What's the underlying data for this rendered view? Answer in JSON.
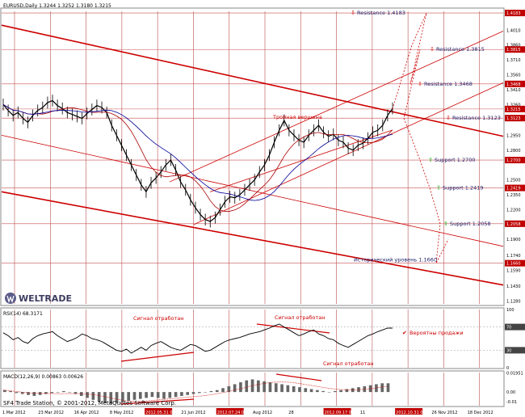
{
  "header": {
    "symbol_info": "EURUSD,Daily  1.3244 1.3252 1.3180 1.3215"
  },
  "footer": {
    "copyright": "SF4 Trade Station, © 2001-2012, MetaQuotes Software Corp."
  },
  "logo": {
    "text": "WELTRADE"
  },
  "chart_data": [
    {
      "type": "line",
      "panel": "price",
      "title": "EURUSD,Daily  1.3244 1.3252 1.3180 1.3215",
      "x_tick_labels": [
        "1 Mar 2012",
        "23 Mar 2012",
        "16 Apr 2012",
        "8 May 2012",
        "2012.05.31 00:00",
        "21 Jun 2012",
        "2012.07.24 00:00",
        "Aug 2012",
        "28",
        "2012.09.17 00:00",
        "11",
        "2012.10.31 00:00",
        "26 Nov 2012",
        "18 Dec 2012"
      ],
      "y_tick_labels": [
        "1.4183",
        "1.4010",
        "1.3860",
        "1.3815",
        "1.3710",
        "1.3560",
        "1.3468",
        "1.3410",
        "1.3260",
        "1.3215",
        "1.3123",
        "1.2950",
        "1.2800",
        "1.2700",
        "1.2500",
        "1.2419",
        "1.2350",
        "1.2200",
        "1.2058",
        "1.1900",
        "1.1740",
        "1.1660",
        "1.1590",
        "1.1430",
        "1.1280"
      ],
      "y_highlight_labels": [
        "1.4183",
        "1.3815",
        "1.3468",
        "1.3215",
        "1.3123",
        "1.2700",
        "1.2419",
        "1.2058",
        "1.1660"
      ],
      "ylim": [
        1.125,
        1.42
      ],
      "close_series": [
        1.326,
        1.32,
        1.315,
        1.318,
        1.312,
        1.308,
        1.315,
        1.32,
        1.323,
        1.328,
        1.33,
        1.325,
        1.322,
        1.318,
        1.316,
        1.314,
        1.312,
        1.317,
        1.321,
        1.325,
        1.323,
        1.318,
        1.305,
        1.295,
        1.285,
        1.275,
        1.265,
        1.255,
        1.245,
        1.238,
        1.247,
        1.252,
        1.258,
        1.265,
        1.27,
        1.26,
        1.248,
        1.24,
        1.23,
        1.222,
        1.215,
        1.21,
        1.208,
        1.212,
        1.22,
        1.228,
        1.233,
        1.232,
        1.235,
        1.24,
        1.245,
        1.25,
        1.258,
        1.265,
        1.275,
        1.288,
        1.3,
        1.31,
        1.3,
        1.295,
        1.29,
        1.288,
        1.295,
        1.3,
        1.305,
        1.298,
        1.294,
        1.296,
        1.29,
        1.288,
        1.282,
        1.28,
        1.285,
        1.287,
        1.292,
        1.298,
        1.3,
        1.305,
        1.315,
        1.322
      ],
      "annotations": [
        {
          "text": "Resistance 1.4183",
          "price": 1.4183,
          "marker": "down"
        },
        {
          "text": "Resistance 1.3815",
          "price": 1.3815,
          "marker": "down"
        },
        {
          "text": "Resistance 1.3468",
          "price": 1.3468,
          "marker": "down"
        },
        {
          "text": "Resistance 1.3123",
          "price": 1.3123,
          "marker": "down"
        },
        {
          "text": "Support 1.2700",
          "price": 1.27,
          "marker": "up"
        },
        {
          "text": "Support 1.2419",
          "price": 1.2419,
          "marker": "up"
        },
        {
          "text": "Support 1.2058",
          "price": 1.2058,
          "marker": "up"
        },
        {
          "text": "Тройная вершина",
          "price": 1.31
        },
        {
          "text": "Исторический уровень 1.1660",
          "price": 1.166
        }
      ],
      "colors": {
        "price": "#000000",
        "trend": "#cc0000",
        "ma": "#000099",
        "ma2": "#aa0000",
        "grid": "#b03030",
        "highlight": "#c00000"
      }
    },
    {
      "type": "line",
      "panel": "rsi",
      "title": "RSI(14) 68.3171",
      "y_tick_labels": [
        "100",
        "70",
        "30",
        "0"
      ],
      "ylim": [
        0,
        100
      ],
      "values": [
        60,
        55,
        48,
        52,
        45,
        42,
        50,
        55,
        58,
        60,
        62,
        55,
        50,
        45,
        48,
        52,
        58,
        55,
        50,
        48,
        45,
        40,
        35,
        30,
        28,
        32,
        25,
        30,
        35,
        30,
        38,
        42,
        45,
        40,
        35,
        32,
        30,
        35,
        40,
        38,
        33,
        28,
        30,
        35,
        40,
        45,
        48,
        50,
        52,
        55,
        58,
        60,
        62,
        65,
        68,
        72,
        75,
        70,
        65,
        60,
        55,
        58,
        62,
        65,
        58,
        55,
        50,
        48,
        42,
        38,
        35,
        40,
        45,
        50,
        55,
        58,
        62,
        65,
        68,
        68
      ],
      "annotations": [
        "Сигнал отработан",
        "Сигнал отработан",
        "Сигнал отработан",
        "Вероятны продажи"
      ]
    },
    {
      "type": "bar",
      "panel": "macd",
      "title": "MACD(12,26,9) 0.00863 0.00626",
      "y_tick_labels": [
        "0.01951",
        "0.00",
        "-0.01"
      ],
      "ylim": [
        -0.014,
        0.02
      ],
      "values": [
        0.002,
        0.001,
        -0.001,
        -0.002,
        -0.003,
        -0.004,
        -0.003,
        -0.002,
        -0.001,
        0.0,
        0.001,
        0.0,
        -0.002,
        -0.004,
        -0.006,
        -0.008,
        -0.01,
        -0.011,
        -0.012,
        -0.011,
        -0.01,
        -0.009,
        -0.008,
        -0.007,
        -0.006,
        -0.005,
        -0.006,
        -0.007,
        -0.006,
        -0.005,
        -0.004,
        -0.003,
        -0.002,
        -0.001,
        0.0,
        0.001,
        0.002,
        0.004,
        0.006,
        0.008,
        0.01,
        0.012,
        0.013,
        0.012,
        0.011,
        0.01,
        0.009,
        0.008,
        0.007,
        0.006,
        0.005,
        0.004,
        0.003,
        0.002,
        0.001,
        0.0,
        0.001,
        0.002,
        0.003,
        0.004,
        0.005,
        0.006,
        0.007,
        0.008,
        0.009,
        0.009
      ]
    }
  ]
}
